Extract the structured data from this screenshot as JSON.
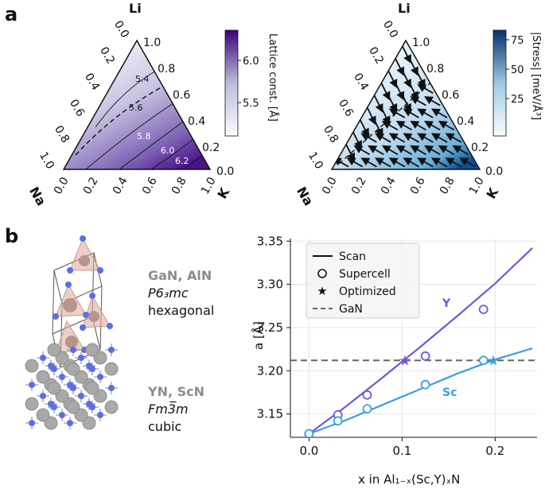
{
  "panels": {
    "a": {
      "letter": "a"
    },
    "b": {
      "letter": "b"
    }
  },
  "ternary_lattice": {
    "vertex_top": "Li",
    "vertex_left": "Na",
    "vertex_right": "K",
    "right_edge_ticks": [
      "1.0",
      "0.8",
      "0.6",
      "0.4",
      "0.2",
      "0.0"
    ],
    "left_edge_ticks": [
      "0.0",
      "0.2",
      "0.4",
      "0.6",
      "0.8",
      "1.0"
    ],
    "bottom_edge_ticks": [
      "0.0",
      "0.2",
      "0.4",
      "0.6",
      "0.8",
      "1.0"
    ],
    "contour_labels": [
      "5.4",
      "5.6",
      "5.8",
      "6.0",
      "6.2"
    ],
    "colorbar_ticks": [
      "6.0",
      "5.5"
    ],
    "colorbar_label": "Lattice const. [Å]",
    "colors": {
      "low": "#f4f2fa",
      "high": "#4a1486"
    }
  },
  "ternary_stress": {
    "vertex_top": "Li",
    "vertex_left": "Na",
    "vertex_right": "K",
    "right_edge_ticks": [
      "1.0",
      "0.8",
      "0.6",
      "0.4",
      "0.2",
      "0.0"
    ],
    "left_edge_ticks": [
      "0.0",
      "0.2",
      "0.4",
      "0.6",
      "0.8",
      "1.0"
    ],
    "bottom_edge_ticks": [
      "0.0",
      "0.2",
      "0.4",
      "0.6",
      "0.8",
      "1.0"
    ],
    "colorbar_ticks": [
      "75",
      "50",
      "25"
    ],
    "colorbar_label": "|Stress| [meV/Å³]",
    "colors": {
      "low": "#f2f8fd",
      "high": "#08519c"
    }
  },
  "structures": [
    {
      "names": "GaN, AlN",
      "space_group": "P6₃mc",
      "system": "hexagonal"
    },
    {
      "names": "YN, ScN",
      "space_group": "Fm3̅m",
      "system": "cubic"
    }
  ],
  "chart_data": {
    "type": "line",
    "xlabel": "x in Al₁₋ₓ(Sc,Y)ₓN",
    "ylabel": "a [Å]",
    "xlim": [
      -0.02,
      0.245
    ],
    "ylim": [
      3.123,
      3.353
    ],
    "xticks": [
      "0.0",
      "0.1",
      "0.2"
    ],
    "yticks": [
      "3.15",
      "3.20",
      "3.25",
      "3.30",
      "3.35"
    ],
    "legend": [
      "Scan",
      "Supercell",
      "Optimized",
      "GaN"
    ],
    "reference_line": {
      "name": "GaN",
      "y": 3.212
    },
    "series": [
      {
        "name": "Y",
        "color": "#6a5bd6",
        "scan": {
          "x": [
            0.0,
            0.04,
            0.08,
            0.12,
            0.16,
            0.2,
            0.24
          ],
          "y": [
            3.127,
            3.159,
            3.193,
            3.228,
            3.264,
            3.301,
            3.342
          ]
        },
        "supercell": {
          "x": [
            0.0,
            0.031,
            0.0625,
            0.125,
            0.1875
          ],
          "y": [
            3.127,
            3.149,
            3.172,
            3.217,
            3.271
          ]
        },
        "optimized": {
          "x": [
            0.103
          ],
          "y": [
            3.212
          ]
        }
      },
      {
        "name": "Sc",
        "color": "#3aa0d8",
        "scan": {
          "x": [
            0.0,
            0.04,
            0.08,
            0.12,
            0.16,
            0.2,
            0.24
          ],
          "y": [
            3.127,
            3.143,
            3.161,
            3.179,
            3.197,
            3.213,
            3.226
          ]
        },
        "supercell": {
          "x": [
            0.0,
            0.031,
            0.0625,
            0.125,
            0.1875
          ],
          "y": [
            3.127,
            3.142,
            3.156,
            3.184,
            3.212
          ]
        },
        "optimized": {
          "x": [
            0.198
          ],
          "y": [
            3.212
          ]
        }
      }
    ]
  }
}
